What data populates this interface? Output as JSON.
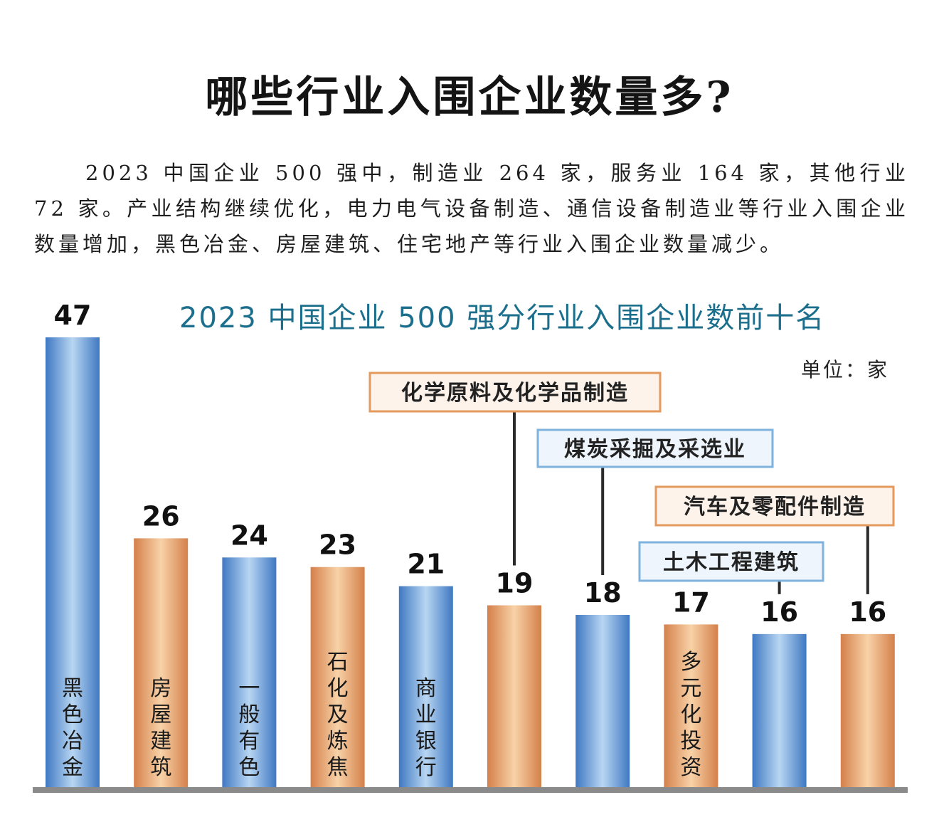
{
  "headline": "哪些行业入围企业数量多?",
  "intro": "2023 中国企业 500 强中，制造业 264 家，服务业 164 家，其他行业 72 家。产业结构继续优化，电力电气设备制造、通信设备制造业等行业入围企业数量增加，黑色冶金、房屋建筑、住宅地产等行业入围企业数量减少。",
  "colors": {
    "blue_bar": "#6a9ad4",
    "orange_bar": "#e8a56a",
    "callout_blue_border": "#7fb3dd",
    "callout_orange_border": "#e39a5c",
    "title": "#1c6f8c",
    "axis": "#8a8a8a"
  },
  "chart_data": {
    "type": "bar",
    "title": "2023 中国企业 500 强分行业入围企业数前十名",
    "unit": "单位：家",
    "ylim": [
      0,
      47
    ],
    "categories": [
      "黑色冶金",
      "房屋建筑",
      "一般有色",
      "石化及炼焦",
      "商业银行",
      "化学原料及化学品制造",
      "煤炭采掘及采选业",
      "多元化投资",
      "土木工程建筑",
      "汽车及零配件制造"
    ],
    "values": [
      47,
      26,
      24,
      23,
      21,
      19,
      18,
      17,
      16,
      16
    ],
    "bar_colors": [
      "blue",
      "orange",
      "blue",
      "orange",
      "blue",
      "orange",
      "blue",
      "orange",
      "blue",
      "orange"
    ],
    "label_style": [
      "inside",
      "inside",
      "inside",
      "inside",
      "inside",
      "callout",
      "callout",
      "inside",
      "callout",
      "callout"
    ]
  }
}
